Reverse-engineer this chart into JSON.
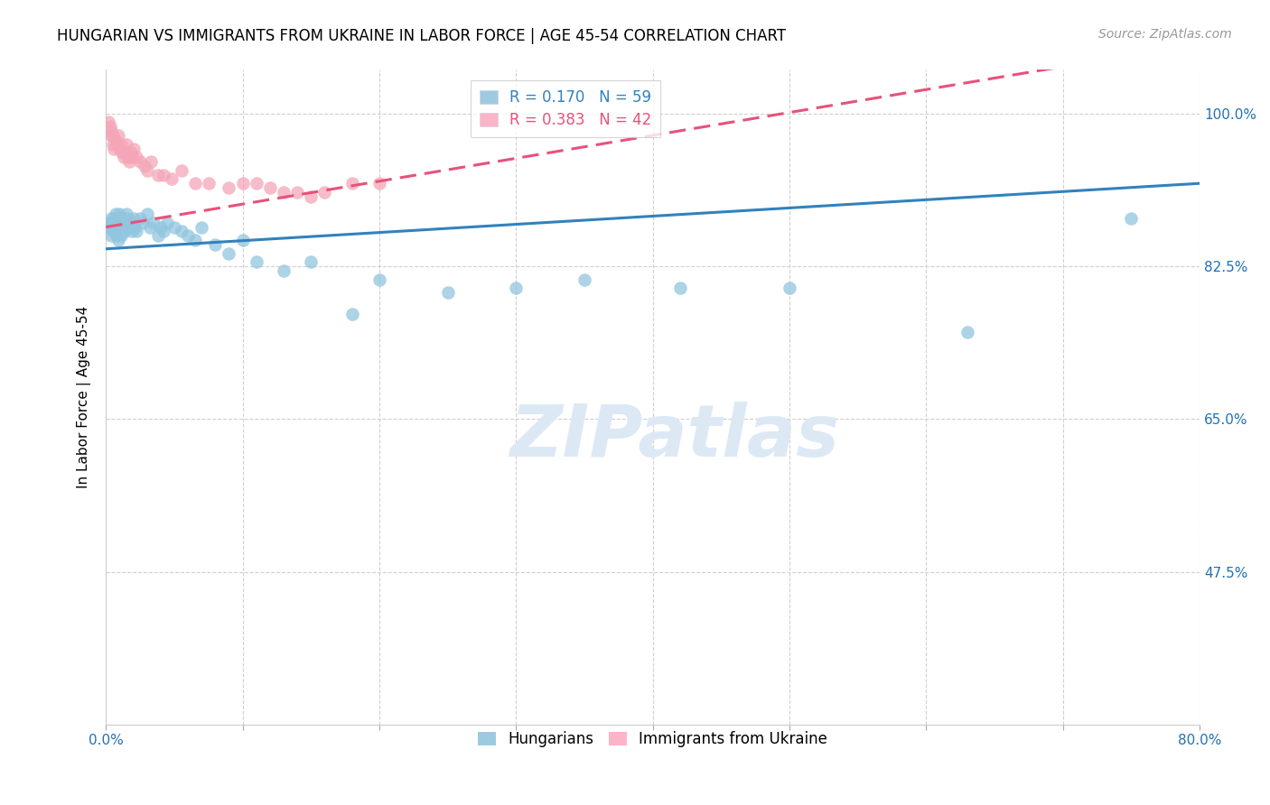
{
  "title": "HUNGARIAN VS IMMIGRANTS FROM UKRAINE IN LABOR FORCE | AGE 45-54 CORRELATION CHART",
  "source": "Source: ZipAtlas.com",
  "ylabel": "In Labor Force | Age 45-54",
  "xlim": [
    0.0,
    0.8
  ],
  "ylim": [
    0.3,
    1.05
  ],
  "xticks": [
    0.0,
    0.1,
    0.2,
    0.3,
    0.4,
    0.5,
    0.6,
    0.7,
    0.8
  ],
  "xticklabels": [
    "0.0%",
    "",
    "",
    "",
    "",
    "",
    "",
    "",
    "80.0%"
  ],
  "ytick_positions": [
    0.475,
    0.65,
    0.825,
    1.0
  ],
  "ytick_labels": [
    "47.5%",
    "65.0%",
    "82.5%",
    "100.0%"
  ],
  "hungarian_R": 0.17,
  "hungarian_N": 59,
  "ukraine_R": 0.383,
  "ukraine_N": 42,
  "blue_color": "#92c5de",
  "pink_color": "#f4a6b8",
  "blue_line_color": "#3182bd",
  "pink_line_color": "#e8517a",
  "legend_blue_color": "#9ecae1",
  "legend_pink_color": "#fbb4c8",
  "watermark_color": "#dce9f5",
  "hu_x": [
    0.002,
    0.003,
    0.004,
    0.004,
    0.005,
    0.005,
    0.006,
    0.006,
    0.007,
    0.007,
    0.008,
    0.008,
    0.009,
    0.009,
    0.01,
    0.01,
    0.011,
    0.011,
    0.012,
    0.013,
    0.014,
    0.015,
    0.015,
    0.016,
    0.017,
    0.018,
    0.019,
    0.02,
    0.021,
    0.022,
    0.025,
    0.027,
    0.03,
    0.032,
    0.035,
    0.038,
    0.04,
    0.042,
    0.045,
    0.05,
    0.055,
    0.06,
    0.065,
    0.07,
    0.08,
    0.09,
    0.1,
    0.11,
    0.13,
    0.15,
    0.18,
    0.2,
    0.25,
    0.3,
    0.35,
    0.42,
    0.5,
    0.63,
    0.75
  ],
  "hu_y": [
    0.875,
    0.87,
    0.88,
    0.86,
    0.875,
    0.865,
    0.88,
    0.87,
    0.885,
    0.865,
    0.88,
    0.86,
    0.875,
    0.855,
    0.885,
    0.87,
    0.88,
    0.86,
    0.875,
    0.87,
    0.865,
    0.885,
    0.875,
    0.88,
    0.87,
    0.875,
    0.865,
    0.88,
    0.87,
    0.865,
    0.88,
    0.875,
    0.885,
    0.87,
    0.875,
    0.86,
    0.87,
    0.865,
    0.875,
    0.87,
    0.865,
    0.86,
    0.855,
    0.87,
    0.85,
    0.84,
    0.855,
    0.83,
    0.82,
    0.83,
    0.77,
    0.81,
    0.795,
    0.8,
    0.81,
    0.8,
    0.8,
    0.75,
    0.88
  ],
  "uk_x": [
    0.002,
    0.003,
    0.004,
    0.004,
    0.005,
    0.005,
    0.006,
    0.007,
    0.008,
    0.009,
    0.01,
    0.011,
    0.012,
    0.013,
    0.014,
    0.015,
    0.016,
    0.017,
    0.018,
    0.019,
    0.02,
    0.022,
    0.025,
    0.028,
    0.03,
    0.033,
    0.038,
    0.042,
    0.048,
    0.055,
    0.065,
    0.075,
    0.09,
    0.1,
    0.11,
    0.12,
    0.13,
    0.14,
    0.15,
    0.16,
    0.18,
    0.2
  ],
  "uk_y": [
    0.99,
    0.985,
    0.98,
    0.975,
    0.965,
    0.975,
    0.96,
    0.97,
    0.965,
    0.975,
    0.96,
    0.965,
    0.955,
    0.95,
    0.955,
    0.965,
    0.95,
    0.945,
    0.955,
    0.95,
    0.96,
    0.95,
    0.945,
    0.94,
    0.935,
    0.945,
    0.93,
    0.93,
    0.925,
    0.935,
    0.92,
    0.92,
    0.915,
    0.92,
    0.92,
    0.915,
    0.91,
    0.91,
    0.905,
    0.91,
    0.92,
    0.92
  ],
  "title_fontsize": 12,
  "axis_label_fontsize": 11,
  "tick_fontsize": 11,
  "source_fontsize": 10,
  "legend_fontsize": 12
}
